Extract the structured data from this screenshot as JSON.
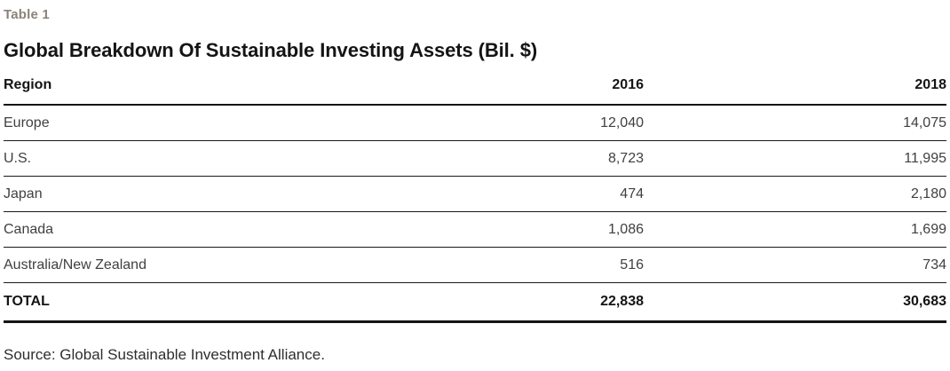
{
  "label": "Table 1",
  "title": "Global Breakdown Of Sustainable Investing Assets (Bil. $)",
  "columns": {
    "region": "Region",
    "y2016": "2016",
    "y2018": "2018"
  },
  "rows": [
    {
      "region": "Europe",
      "y2016": "12,040",
      "y2018": "14,075"
    },
    {
      "region": "U.S.",
      "y2016": "8,723",
      "y2018": "11,995"
    },
    {
      "region": "Japan",
      "y2016": "474",
      "y2018": "2,180"
    },
    {
      "region": "Canada",
      "y2016": "1,086",
      "y2018": "1,699"
    },
    {
      "region": "Australia/New Zealand",
      "y2016": "516",
      "y2018": "734"
    }
  ],
  "total_row": {
    "region": "TOTAL",
    "y2016": "22,838",
    "y2018": "30,683"
  },
  "source": "Source: Global Sustainable Investment Alliance.",
  "colors": {
    "label_text": "#8b8279",
    "heading_text": "#141414",
    "body_text": "#404040",
    "rule": "#141414",
    "background": "#ffffff"
  },
  "chart_data": {
    "type": "table",
    "title": "Global Breakdown Of Sustainable Investing Assets (Bil. $)",
    "table_label": "Table 1",
    "columns": [
      "Region",
      "2016",
      "2018"
    ],
    "rows": [
      [
        "Europe",
        12040,
        14075
      ],
      [
        "U.S.",
        8723,
        11995
      ],
      [
        "Japan",
        474,
        2180
      ],
      [
        "Canada",
        1086,
        1699
      ],
      [
        "Australia/New Zealand",
        516,
        734
      ],
      [
        "TOTAL",
        22838,
        30683
      ]
    ],
    "units": "Bil. $",
    "source": "Source: Global Sustainable Investment Alliance."
  }
}
